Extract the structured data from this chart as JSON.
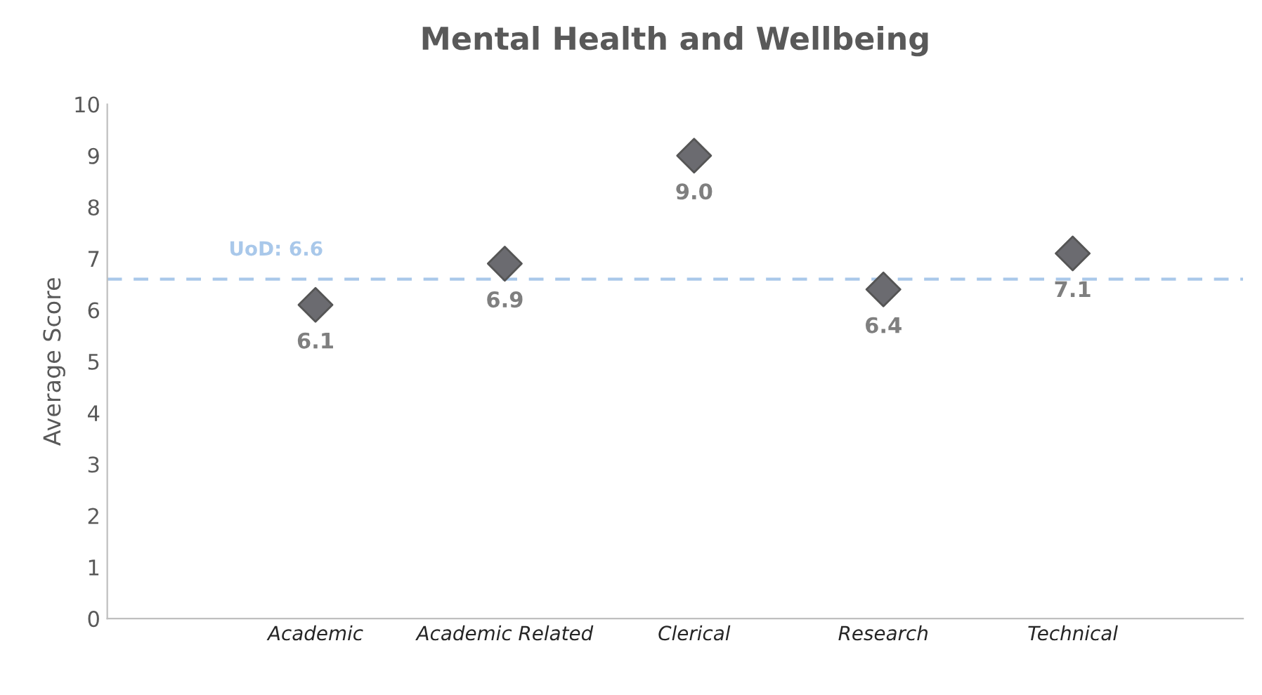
{
  "chart_data": {
    "type": "scatter",
    "title": "Mental Health and Wellbeing",
    "ylabel": "Average Score",
    "categories": [
      "Academic",
      "Academic Related",
      "Clerical",
      "Research",
      "Technical"
    ],
    "series": [
      {
        "color": "#6b6b70",
        "values": [
          6.1,
          6.9,
          9.0,
          6.4,
          7.1
        ],
        "value_labels": [
          "6.1",
          "6.9",
          "9.0",
          "6.4",
          "7.1"
        ]
      }
    ],
    "ylim": [
      0,
      10
    ],
    "yticks": [
      0,
      1,
      2,
      3,
      4,
      5,
      6,
      7,
      8,
      9,
      10
    ],
    "ref_lines": [
      {
        "axis": "y",
        "value": 6.6,
        "label": "UoD: 6.6",
        "color": "#a9c8ea",
        "line_style": "dashed"
      }
    ],
    "marker": "diamond",
    "grid": false
  }
}
